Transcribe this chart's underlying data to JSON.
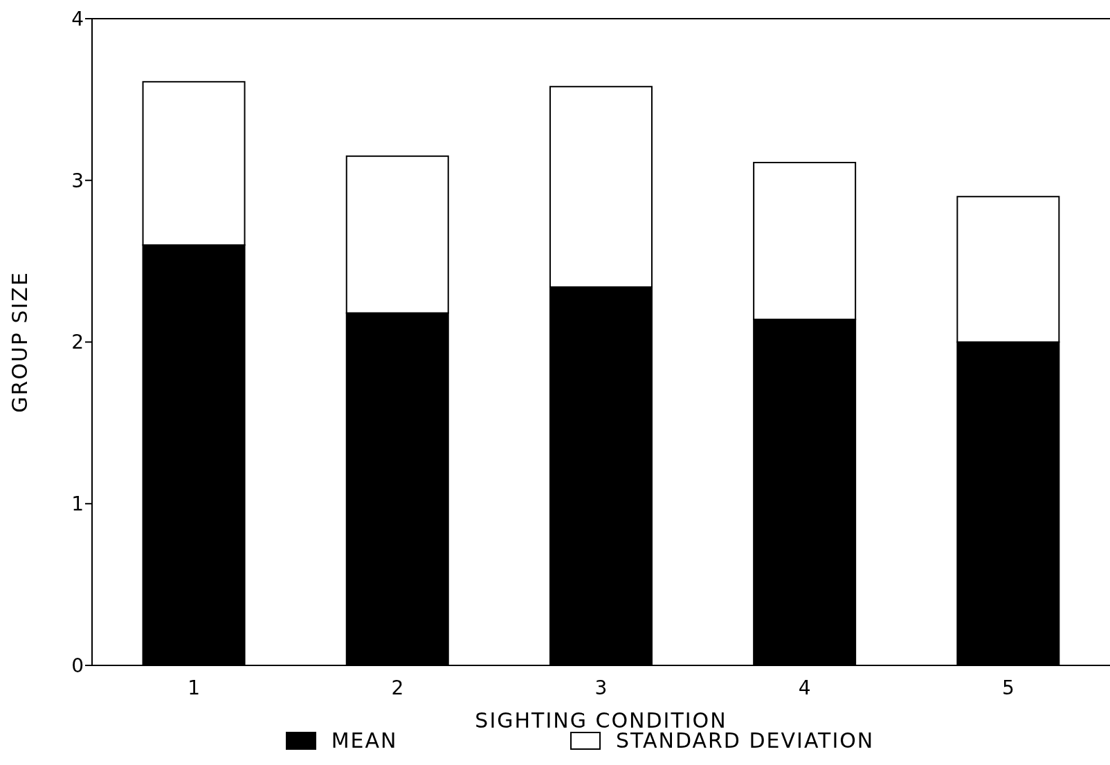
{
  "chart_data": {
    "type": "bar",
    "stacked": true,
    "xlabel": "SIGHTING CONDITION",
    "ylabel": "GROUP SIZE",
    "categories": [
      "1",
      "2",
      "3",
      "4",
      "5"
    ],
    "series": [
      {
        "name": "MEAN",
        "color": "#000000",
        "values": [
          2.6,
          2.18,
          2.34,
          2.14,
          2.0
        ]
      },
      {
        "name": "STANDARD DEVIATION",
        "color": "#ffffff",
        "values": [
          1.01,
          0.97,
          1.24,
          0.97,
          0.9
        ]
      }
    ],
    "ylim": [
      0,
      4
    ],
    "yticks": [
      0,
      1,
      2,
      3,
      4
    ],
    "grid": false,
    "legend": "bottom"
  }
}
